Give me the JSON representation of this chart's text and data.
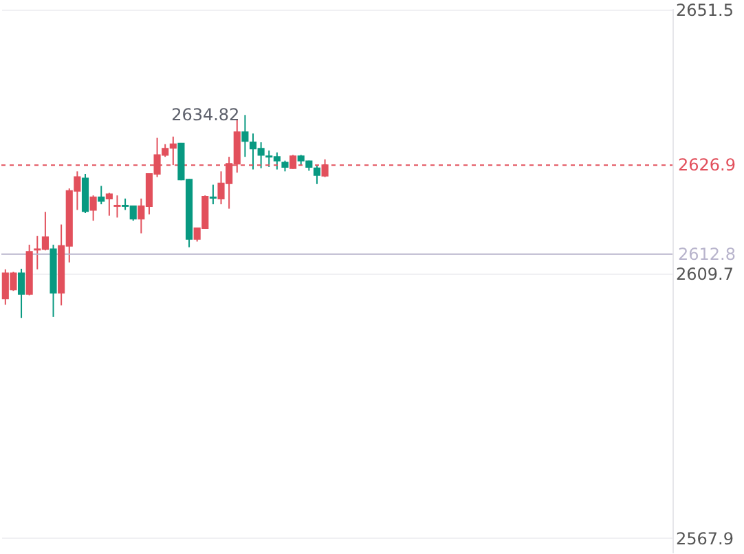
{
  "chart_data": {
    "type": "candlestick",
    "categories": [
      null,
      null,
      null,
      null,
      null,
      null,
      null,
      null,
      null,
      null,
      null,
      null,
      null,
      null,
      null,
      null,
      null,
      null,
      null,
      null,
      null,
      null,
      null,
      null,
      null,
      null,
      null,
      null,
      null,
      null,
      null,
      null,
      null,
      null,
      null,
      null,
      null,
      null,
      null,
      null,
      null,
      null,
      null,
      null,
      null,
      null,
      null,
      null,
      null,
      null,
      null,
      null,
      null,
      null,
      null,
      null,
      null,
      null,
      null,
      null,
      null,
      null,
      null,
      null,
      null,
      null,
      null,
      null,
      null,
      null,
      null,
      null,
      null,
      null,
      null,
      null,
      null,
      null,
      null,
      null,
      null,
      null,
      null,
      null
    ],
    "ohlc": [
      [
        2605.8,
        2610.4,
        2604.8,
        2609.8
      ],
      [
        2607.2,
        2610.0,
        2607.0,
        2609.8
      ],
      [
        2609.8,
        2610.5,
        2602.7,
        2606.5
      ],
      [
        2606.5,
        2614.3,
        2606.3,
        2613.2
      ],
      [
        2613.5,
        2615.7,
        2610.4,
        2613.6
      ],
      [
        2613.6,
        2619.5,
        2613.4,
        2615.5
      ],
      [
        2613.6,
        2614.3,
        2602.9,
        2606.7
      ],
      [
        2606.7,
        2617.5,
        2604.7,
        2614.1
      ],
      [
        2614.1,
        2623.2,
        2611.5,
        2622.8
      ],
      [
        2622.8,
        2625.9,
        2619.8,
        2625.0
      ],
      [
        2624.8,
        2625.5,
        2619.3,
        2619.6
      ],
      [
        2619.8,
        2622.1,
        2618.1,
        2621.8
      ],
      [
        2621.8,
        2623.6,
        2620.7,
        2621.2
      ],
      [
        2621.6,
        2622.5,
        2618.9,
        2622.3
      ],
      [
        2620.4,
        2622.1,
        2618.6,
        2620.5
      ],
      [
        2620.5,
        2621.6,
        2619.8,
        2620.4
      ],
      [
        2620.4,
        2620.5,
        2618.1,
        2618.4
      ],
      [
        2618.4,
        2621.6,
        2616.1,
        2620.4
      ],
      [
        2620.4,
        2625.6,
        2619.1,
        2625.5
      ],
      [
        2625.5,
        2631.2,
        2625.0,
        2628.5
      ],
      [
        2628.5,
        2630.2,
        2628.2,
        2629.5
      ],
      [
        2629.6,
        2631.4,
        2626.9,
        2630.2
      ],
      [
        2630.3,
        2630.4,
        2624.5,
        2624.6
      ],
      [
        2624.6,
        2624.7,
        2613.9,
        2615.2
      ],
      [
        2615.2,
        2617.0,
        2614.8,
        2616.9
      ],
      [
        2616.9,
        2622.1,
        2616.8,
        2621.9
      ],
      [
        2621.8,
        2623.8,
        2620.7,
        2621.7
      ],
      [
        2621.6,
        2625.9,
        2620.7,
        2624.0
      ],
      [
        2624.0,
        2628.2,
        2620.0,
        2627.1
      ],
      [
        2627.1,
        2634.2,
        2625.7,
        2632.1
      ],
      [
        2632.1,
        2634.82,
        2628.2,
        2630.7
      ],
      [
        2630.5,
        2631.9,
        2626.2,
        2629.5
      ],
      [
        2629.5,
        2630.5,
        2626.4,
        2628.5
      ],
      [
        2628.3,
        2629.2,
        2626.6,
        2628.2
      ],
      [
        2628.2,
        2628.9,
        2626.2,
        2627.6
      ],
      [
        2627.3,
        2627.6,
        2625.9,
        2626.6
      ],
      [
        2626.4,
        2628.5,
        2626.3,
        2628.3
      ],
      [
        2628.3,
        2628.5,
        2626.8,
        2627.6
      ],
      [
        2627.5,
        2627.6,
        2626.0,
        2626.6
      ],
      [
        2626.4,
        2626.8,
        2623.9,
        2625.3
      ],
      [
        2625.2,
        2627.8,
        2625.0,
        2626.9
      ],
      null,
      null,
      null,
      null,
      null,
      null,
      null,
      null,
      null,
      null,
      null,
      null,
      null,
      null,
      null,
      null,
      null,
      null,
      null,
      null,
      null,
      null,
      null,
      null,
      null,
      null,
      null,
      null,
      null,
      null,
      null,
      null,
      null,
      null,
      null,
      null,
      null,
      null,
      null,
      null,
      null,
      null,
      null
    ],
    "colors": [
      "#e2505c",
      "#e2505c",
      "#089981",
      "#e2505c",
      "#e2505c",
      "#e2505c",
      "#089981",
      "#e2505c",
      "#e2505c",
      "#e2505c",
      "#089981",
      "#e2505c",
      "#089981",
      "#e2505c",
      "#e2505c",
      "#089981",
      "#089981",
      "#e2505c",
      "#e2505c",
      "#e2505c",
      "#e2505c",
      "#e2505c",
      "#089981",
      "#089981",
      "#e2505c",
      "#e2505c",
      "#089981",
      "#e2505c",
      "#e2505c",
      "#e2505c",
      "#089981",
      "#089981",
      "#089981",
      "#089981",
      "#089981",
      "#089981",
      "#e2505c",
      "#089981",
      "#089981",
      "#089981",
      "#e2505c",
      null,
      null,
      null,
      null,
      null,
      null,
      null,
      null,
      null,
      null,
      null,
      null,
      null,
      null,
      null,
      null,
      null,
      null,
      null,
      null,
      null,
      null,
      null,
      null,
      null,
      null,
      null,
      null,
      null,
      null,
      null,
      null,
      null,
      null,
      null,
      null,
      null,
      null,
      null,
      null,
      null,
      null,
      null
    ],
    "ylim": [
      2565.6,
      2651.7
    ],
    "yticks": [
      2567.9,
      2609.7,
      2651.5
    ],
    "grid": "y",
    "tick_labels": "y",
    "ref_lines": [
      {
        "axis": "y",
        "value": 2626.9,
        "label": "2626.9",
        "color": "#e2505c",
        "line_style": "dashed"
      },
      {
        "axis": "y",
        "value": 2612.8,
        "label": "2612.8",
        "color": "#b8b4cc",
        "line_style": "solid"
      }
    ],
    "annotations": [
      "2634.82"
    ]
  }
}
